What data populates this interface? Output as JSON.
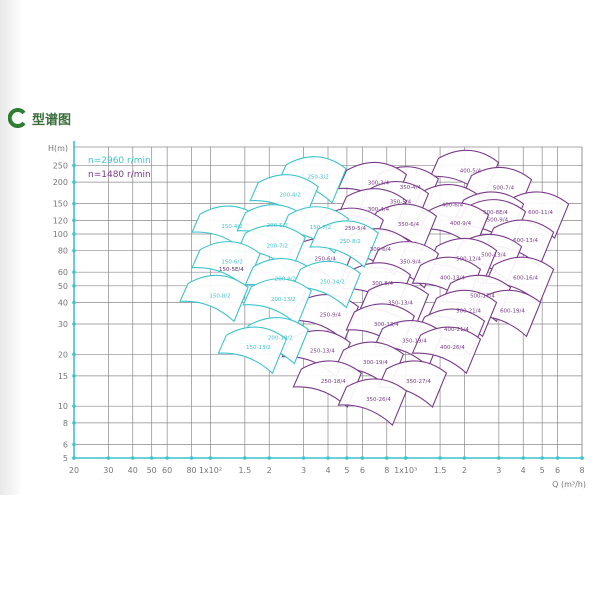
{
  "header": {
    "title": "型谱图",
    "icon": "c-ring-icon",
    "accent": "#2e7d32"
  },
  "chart_data": {
    "type": "region-map",
    "xlabel": "Q (m³/h)",
    "ylabel": "H(m)",
    "xscale": "log",
    "yscale": "log",
    "xlim": [
      20,
      8000
    ],
    "ylim": [
      5,
      320
    ],
    "grid": true,
    "x_ticks": [
      {
        "v": 20,
        "label": "20"
      },
      {
        "v": 30,
        "label": "30"
      },
      {
        "v": 40,
        "label": "40"
      },
      {
        "v": 50,
        "label": "50"
      },
      {
        "v": 60,
        "label": "60"
      },
      {
        "v": 80,
        "label": "80"
      },
      {
        "v": 100,
        "label": "1x10²"
      },
      {
        "v": 150,
        "label": "1.5"
      },
      {
        "v": 200,
        "label": "2"
      },
      {
        "v": 300,
        "label": "3"
      },
      {
        "v": 400,
        "label": "4"
      },
      {
        "v": 500,
        "label": "5"
      },
      {
        "v": 600,
        "label": "6"
      },
      {
        "v": 800,
        "label": "8"
      },
      {
        "v": 1000,
        "label": "1x10³"
      },
      {
        "v": 1500,
        "label": "1.5"
      },
      {
        "v": 2000,
        "label": "2"
      },
      {
        "v": 3000,
        "label": "3"
      },
      {
        "v": 4000,
        "label": "4"
      },
      {
        "v": 5000,
        "label": "5"
      },
      {
        "v": 6000,
        "label": "6"
      },
      {
        "v": 8000,
        "label": "8"
      }
    ],
    "y_ticks": [
      5,
      6,
      8,
      10,
      15,
      20,
      30,
      40,
      50,
      60,
      80,
      100,
      120,
      150,
      200,
      250
    ],
    "legend": [
      {
        "label": "n=2960 r/min",
        "color": "#3cc4cc"
      },
      {
        "label": "n=1480 r/min",
        "color": "#7a3a8a"
      }
    ],
    "legend_placement": "top-left",
    "series": [
      {
        "name": "n=2960 r/min",
        "color": "#3cc4cc",
        "regions": [
          {
            "label": "250-3/2",
            "q": 356,
            "h": 215
          },
          {
            "label": "200-4/2",
            "q": 256,
            "h": 169
          },
          {
            "label": "150-4/2",
            "q": 129,
            "h": 111
          },
          {
            "label": "200-5/2",
            "q": 220,
            "h": 113
          },
          {
            "label": "150-7/2",
            "q": 366,
            "h": 110
          },
          {
            "label": "250-8/2",
            "q": 520,
            "h": 91
          },
          {
            "label": "200-7/2",
            "q": 220,
            "h": 86
          },
          {
            "label": "150-6/2",
            "q": 129,
            "h": 69
          },
          {
            "label": "200-9/2",
            "q": 242,
            "h": 55
          },
          {
            "label": "250-14/2",
            "q": 421,
            "h": 53
          },
          {
            "label": "150-8/2",
            "q": 112,
            "h": 44
          },
          {
            "label": "200-13/2",
            "q": 236,
            "h": 42
          },
          {
            "label": "200-19/2",
            "q": 228,
            "h": 25
          },
          {
            "label": "150-13/2",
            "q": 176,
            "h": 22
          }
        ]
      },
      {
        "name": "n=1480 r/min",
        "color": "#7a3a8a",
        "regions": [
          {
            "label": "400-5/4",
            "q": 2147,
            "h": 234
          },
          {
            "label": "500-7/4",
            "q": 3170,
            "h": 186
          },
          {
            "label": "600-11/4",
            "q": 4909,
            "h": 134
          },
          {
            "label": "350-4/4",
            "q": 1057,
            "h": 188
          },
          {
            "label": "300-3/4",
            "q": 725,
            "h": 199
          },
          {
            "label": "400-6/4",
            "q": 1736,
            "h": 148
          },
          {
            "label": "500-8E/4",
            "q": 2885,
            "h": 134
          },
          {
            "label": "500-9/4",
            "q": 2953,
            "h": 121
          },
          {
            "label": "350-5/4",
            "q": 940,
            "h": 154
          },
          {
            "label": "300-4/4",
            "q": 725,
            "h": 140
          },
          {
            "label": "400-9/4",
            "q": 1909,
            "h": 116
          },
          {
            "label": "350-6/4",
            "q": 1033,
            "h": 114
          },
          {
            "label": "250-5/4",
            "q": 552,
            "h": 108
          },
          {
            "label": "600-13/4",
            "q": 4112,
            "h": 92
          },
          {
            "label": "500-13/4",
            "q": 2818,
            "h": 76
          },
          {
            "label": "300-6/4",
            "q": 742,
            "h": 82
          },
          {
            "label": "250-6/4",
            "q": 387,
            "h": 72
          },
          {
            "label": "500-12/4",
            "q": 2099,
            "h": 72
          },
          {
            "label": "350-9/4",
            "q": 1057,
            "h": 69
          },
          {
            "label": "600-16/4",
            "q": 4112,
            "h": 56
          },
          {
            "label": "400-13/4",
            "q": 1736,
            "h": 56
          },
          {
            "label": "300-8/4",
            "q": 760,
            "h": 52
          },
          {
            "label": "500-17/4",
            "q": 2474,
            "h": 44
          },
          {
            "label": "350-13/4",
            "q": 940,
            "h": 40
          },
          {
            "label": "600-19/4",
            "q": 3524,
            "h": 36
          },
          {
            "label": "500-21/4",
            "q": 2099,
            "h": 36
          },
          {
            "label": "250-9/4",
            "q": 411,
            "h": 34
          },
          {
            "label": "300-13/4",
            "q": 796,
            "h": 30
          },
          {
            "label": "400-21/4",
            "q": 1820,
            "h": 28
          },
          {
            "label": "350-19/4",
            "q": 1109,
            "h": 24
          },
          {
            "label": "400-26/4",
            "q": 1736,
            "h": 22
          },
          {
            "label": "250-13/4",
            "q": 374,
            "h": 21
          },
          {
            "label": "300-19/4",
            "q": 700,
            "h": 18
          },
          {
            "label": "350-27/4",
            "q": 1162,
            "h": 14
          },
          {
            "label": "250-18/4",
            "q": 426,
            "h": 14
          },
          {
            "label": "350-26/4",
            "q": 725,
            "h": 11
          }
        ]
      }
    ],
    "annotations": [
      {
        "label": "150-5E/4",
        "q": 128,
        "h": 61,
        "color": "#5a2a6a"
      }
    ]
  }
}
